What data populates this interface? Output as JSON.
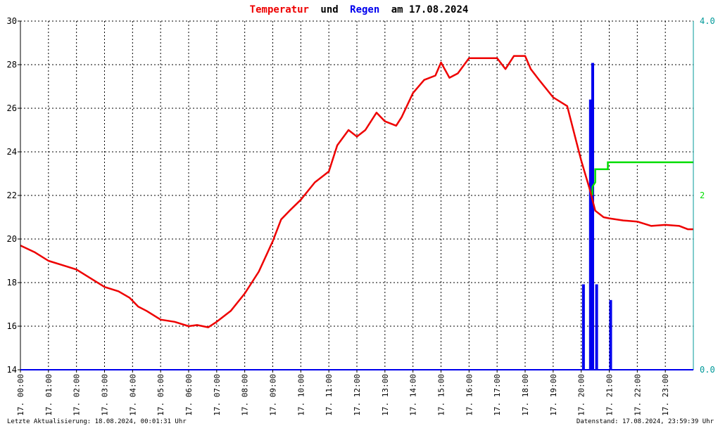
{
  "title_parts": {
    "temp": "Temperatur",
    "und": "und",
    "rain": "Regen",
    "rest": "am 17.08.2024"
  },
  "footer": {
    "left": "Letzte Aktualisierung: 18.08.2024, 00:01:31 Uhr",
    "right": "Datenstand: 17.08.2024, 23:59:39 Uhr"
  },
  "colors": {
    "temperature": "#ee0000",
    "rain": "#0000ee",
    "rain_sum": "#00dd00",
    "axis_right": "#009999"
  },
  "chart_data": {
    "type": "line",
    "x_range_hours": [
      0,
      24
    ],
    "x_tick_labels": [
      "17. 00:00",
      "17. 01:00",
      "17. 02:00",
      "17. 03:00",
      "17. 04:00",
      "17. 05:00",
      "17. 06:00",
      "17. 07:00",
      "17. 08:00",
      "17. 09:00",
      "17. 10:00",
      "17. 11:00",
      "17. 12:00",
      "17. 13:00",
      "17. 14:00",
      "17. 15:00",
      "17. 16:00",
      "17. 17:00",
      "17. 18:00",
      "17. 19:00",
      "17. 20:00",
      "17. 21:00",
      "17. 22:00",
      "17. 23:00"
    ],
    "y_left": {
      "min": 14,
      "max": 30,
      "ticks": [
        "14",
        "16",
        "18",
        "20",
        "22",
        "24",
        "26",
        "28",
        "30"
      ]
    },
    "y_right": {
      "min": 0,
      "max": 4,
      "ticks": [
        "0.0",
        "4.0"
      ],
      "mid_label": "2"
    },
    "grid": true,
    "series": [
      {
        "key": "temperature",
        "x": [
          0.0,
          0.5,
          1.0,
          1.5,
          2.0,
          2.5,
          3.0,
          3.5,
          3.9,
          4.2,
          4.5,
          5.0,
          5.5,
          6.0,
          6.3,
          6.7,
          7.0,
          7.5,
          8.0,
          8.5,
          9.0,
          9.3,
          9.6,
          10.0,
          10.5,
          11.0,
          11.3,
          11.7,
          12.0,
          12.3,
          12.7,
          13.0,
          13.4,
          13.6,
          14.0,
          14.4,
          14.8,
          15.0,
          15.3,
          15.6,
          16.0,
          16.5,
          17.0,
          17.3,
          17.6,
          18.0,
          18.2,
          18.5,
          19.0,
          19.5,
          19.8,
          20.0,
          20.3,
          20.5,
          20.8,
          21.0,
          21.5,
          22.0,
          22.5,
          23.0,
          23.5,
          23.8,
          24.0
        ],
        "y": [
          19.7,
          19.4,
          19.0,
          18.8,
          18.6,
          18.2,
          17.8,
          17.6,
          17.3,
          16.9,
          16.7,
          16.3,
          16.2,
          16.0,
          16.05,
          15.95,
          16.2,
          16.7,
          17.5,
          18.5,
          19.9,
          20.9,
          21.3,
          21.8,
          22.6,
          23.1,
          24.3,
          25.0,
          24.7,
          25.0,
          25.8,
          25.4,
          25.2,
          25.6,
          26.7,
          27.3,
          27.5,
          28.1,
          27.4,
          27.6,
          28.3,
          28.3,
          28.3,
          27.8,
          28.4,
          28.4,
          27.8,
          27.3,
          26.5,
          26.1,
          24.6,
          23.6,
          22.3,
          21.3,
          21.0,
          20.95,
          20.85,
          20.8,
          20.6,
          20.65,
          20.6,
          20.45,
          20.45
        ]
      },
      {
        "key": "rain",
        "bars": [
          {
            "x": 20.08,
            "value": 0.98
          },
          {
            "x": 20.33,
            "value": 3.1
          },
          {
            "x": 20.41,
            "value": 3.52
          },
          {
            "x": 20.55,
            "value": 0.98
          },
          {
            "x": 21.05,
            "value": 0.8
          }
        ]
      },
      {
        "key": "rain_sum",
        "x": [
          20.4,
          20.4,
          20.5,
          20.5,
          20.95,
          20.95,
          24.0
        ],
        "y": [
          2.0,
          2.1,
          2.15,
          2.3,
          2.3,
          2.38,
          2.38
        ]
      }
    ]
  }
}
